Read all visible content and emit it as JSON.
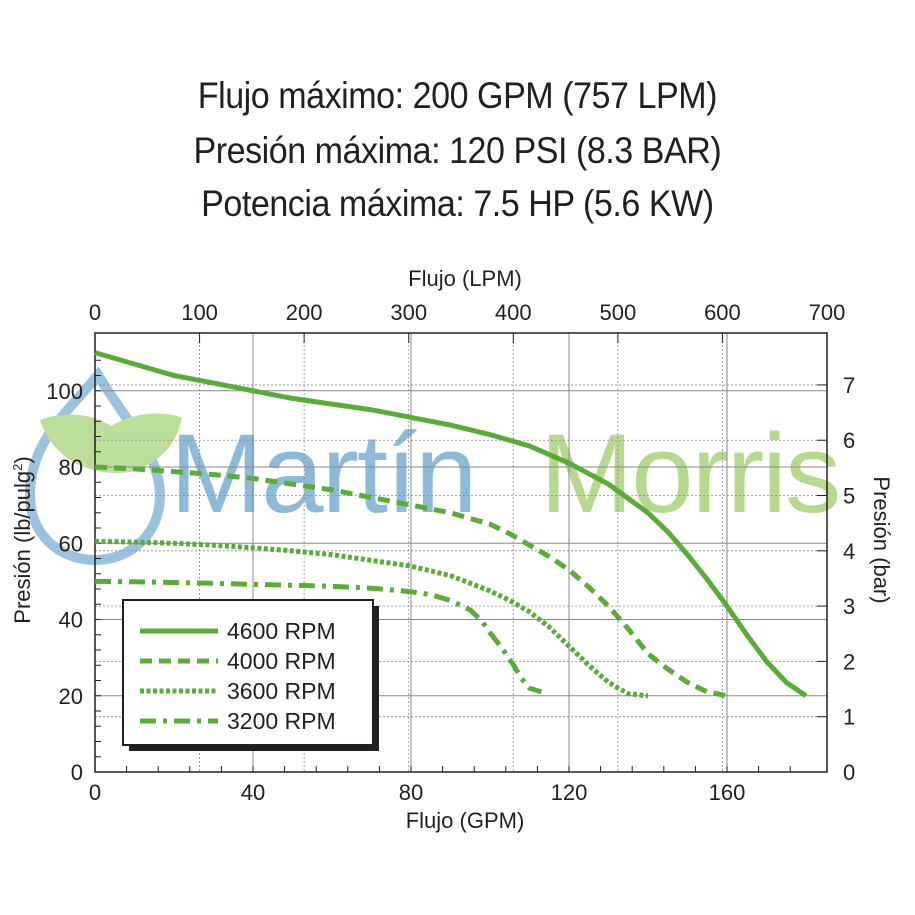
{
  "specs": [
    "Flujo máximo: 200 GPM (757 LPM)",
    "Presión máxima: 120 PSI (8.3 BAR)",
    "Potencia máxima: 7.5 HP (5.6 KW)"
  ],
  "watermark": {
    "brand_part1": "Martín",
    "brand_part2": "Morris",
    "color_blue": "#7aaed3",
    "color_green": "#a8d27a"
  },
  "chart_data": {
    "type": "line",
    "title": "",
    "xlabel": "Flujo (GPM)",
    "ylabel": "Presión (lb/pulg",
    "ylabel_sup": "2",
    "ylabel_close": ")",
    "x2label": "Flujo (LPM)",
    "y2label": "Presión (bar)",
    "xlim": [
      0,
      180
    ],
    "ylim": [
      0,
      110
    ],
    "x_ticks": [
      0,
      40,
      80,
      120,
      160
    ],
    "y_ticks": [
      0,
      20,
      40,
      60,
      80,
      100
    ],
    "x2_ticks": [
      0,
      100,
      200,
      300,
      400,
      500,
      600,
      700
    ],
    "y2_ticks": [
      0,
      1,
      2,
      3,
      4,
      5,
      6,
      7
    ],
    "series": [
      {
        "name": "4600 RPM",
        "style": "solid",
        "x": [
          0,
          10,
          20,
          30,
          40,
          50,
          60,
          70,
          80,
          90,
          100,
          110,
          120,
          130,
          140,
          145,
          150,
          155,
          160,
          165,
          170,
          175,
          180
        ],
        "y": [
          110,
          107,
          104,
          102,
          100,
          98,
          96.5,
          95,
          93,
          91,
          88.5,
          85.5,
          81,
          75.5,
          68,
          63,
          57,
          50.5,
          43.5,
          36,
          29,
          23.5,
          20
        ]
      },
      {
        "name": "4000 RPM",
        "style": "dashed",
        "x": [
          0,
          10,
          20,
          30,
          40,
          50,
          60,
          70,
          80,
          90,
          100,
          105,
          110,
          115,
          120,
          125,
          130,
          135,
          140,
          145,
          150,
          155,
          160
        ],
        "y": [
          80,
          79.5,
          78.8,
          78,
          77,
          75.5,
          74,
          72,
          70,
          68,
          65,
          62.5,
          59.5,
          56.5,
          53,
          48.5,
          43.5,
          37.5,
          31,
          27,
          23.5,
          21,
          20
        ]
      },
      {
        "name": "3600 RPM",
        "style": "dotted",
        "x": [
          0,
          10,
          20,
          30,
          40,
          50,
          60,
          70,
          80,
          90,
          95,
          100,
          105,
          110,
          115,
          120,
          125,
          130,
          135,
          140
        ],
        "y": [
          60.5,
          60.3,
          60,
          59.5,
          58.8,
          58,
          57,
          55.5,
          54,
          51.5,
          49.5,
          47.5,
          45,
          42,
          38,
          33,
          28,
          23.5,
          20.5,
          20
        ]
      },
      {
        "name": "3200 RPM",
        "style": "dashdot",
        "x": [
          0,
          10,
          20,
          30,
          40,
          50,
          60,
          70,
          80,
          85,
          90,
          95,
          98,
          100,
          103,
          106,
          108,
          110,
          113
        ],
        "y": [
          50,
          49.9,
          49.7,
          49.5,
          49.2,
          49,
          48.7,
          48.2,
          47.3,
          46.5,
          45,
          42.5,
          39.5,
          36.5,
          32.5,
          28,
          24.5,
          22,
          21
        ]
      }
    ],
    "series_color": "#5aab39",
    "legend_position": "bottom-left"
  }
}
